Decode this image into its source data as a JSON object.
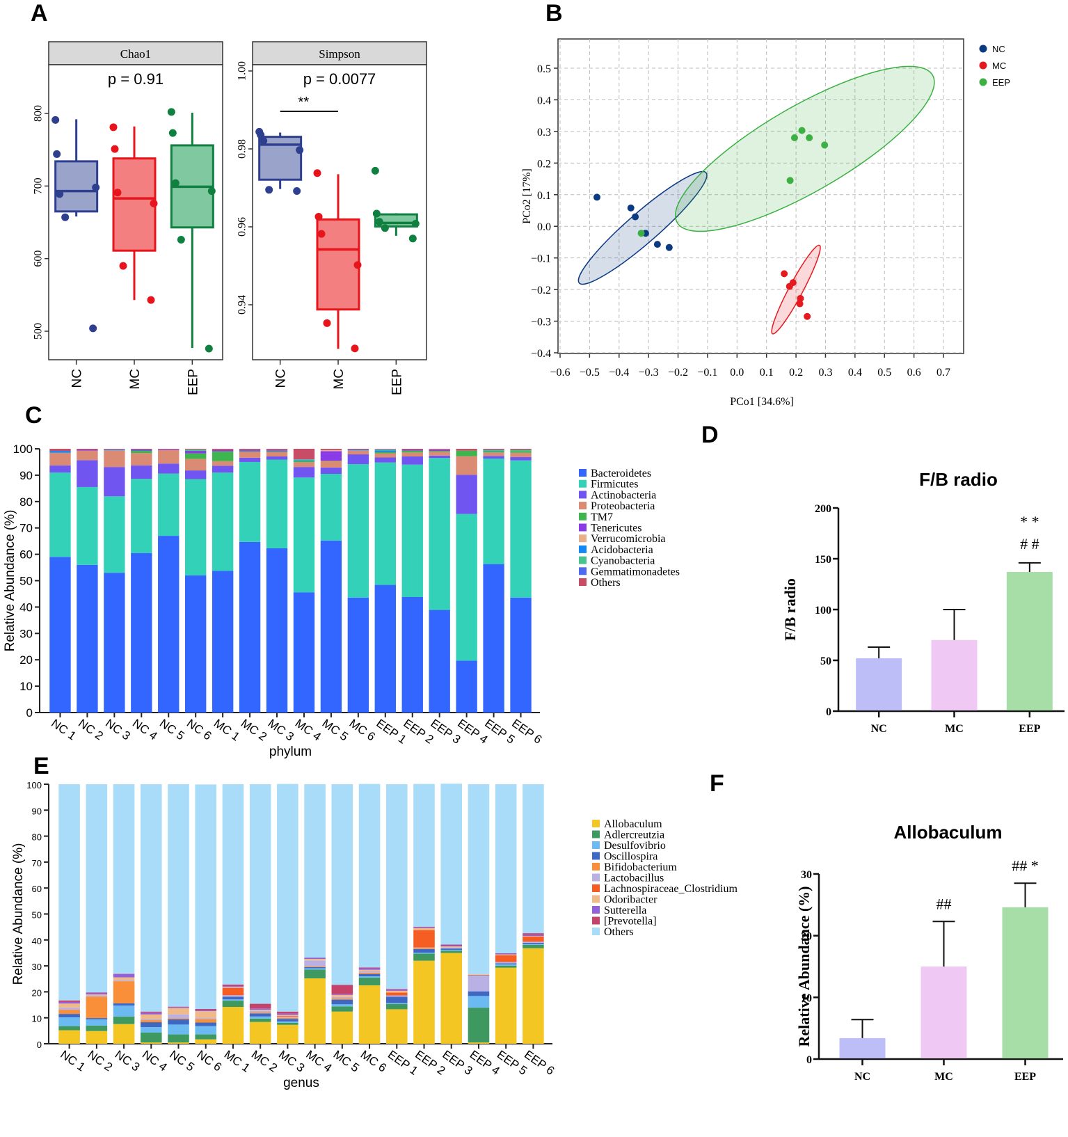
{
  "panel_labels": {
    "A": "A",
    "B": "B",
    "C": "C",
    "D": "D",
    "E": "E",
    "F": "F"
  },
  "groups": [
    "NC",
    "MC",
    "EEP"
  ],
  "group_colors": {
    "box": {
      "NC": "#2e3f8f",
      "MC": "#e8141b",
      "EEP": "#0f8040"
    },
    "box_fill": {
      "NC": "#9aa3c9",
      "MC": "#f47f80",
      "EEP": "#80c8a0"
    },
    "pcoa": {
      "NC": "#0b3a82",
      "MC": "#e51a1f",
      "EEP": "#3cb043"
    },
    "bar": {
      "NC": "#bdbdf8",
      "MC": "#efc9f4",
      "EEP": "#a7dea8"
    }
  },
  "chart_data": [
    {
      "id": "A-chao1",
      "type": "box",
      "title": "Chao1",
      "annotation": "p = 0.91",
      "categories": [
        "NC",
        "MC",
        "EEP"
      ],
      "ylim": [
        465,
        880
      ],
      "yticks": [
        500,
        600,
        700,
        800
      ],
      "boxes": [
        {
          "group": "NC",
          "q1": 665,
          "median": 693,
          "q3": 734,
          "whisker_low": 658,
          "whisker_high": 792,
          "points": [
            791,
            744,
            689,
            698,
            657,
            504
          ]
        },
        {
          "group": "MC",
          "q1": 611,
          "median": 683,
          "q3": 738,
          "whisker_low": 543,
          "whisker_high": 782,
          "points": [
            781,
            751,
            691,
            676,
            590,
            543
          ]
        },
        {
          "group": "EEP",
          "q1": 643,
          "median": 699,
          "q3": 756,
          "whisker_low": 477,
          "whisker_high": 801,
          "points": [
            802,
            773,
            704,
            693,
            626,
            476
          ]
        }
      ]
    },
    {
      "id": "A-simpson",
      "type": "box",
      "title": "Simpson",
      "annotation": "p = 0.0077",
      "significance": {
        "label": "**",
        "from": "NC",
        "to": "MC"
      },
      "categories": [
        "NC",
        "MC",
        "EEP"
      ],
      "ylim": [
        0.926,
        1.0015
      ],
      "yticks": [
        0.94,
        0.96,
        0.98,
        1.0
      ],
      "ytick_labels": [
        "0.94",
        "0.96",
        "0.98",
        "1.00"
      ],
      "boxes": [
        {
          "group": "NC",
          "q1": 0.9721,
          "median": 0.9811,
          "q3": 0.9831,
          "whisker_low": 0.9697,
          "whisker_high": 0.9842,
          "points": [
            0.9844,
            0.9836,
            0.9821,
            0.9797,
            0.9695,
            0.9692
          ]
        },
        {
          "group": "MC",
          "q1": 0.9388,
          "median": 0.9542,
          "q3": 0.9619,
          "whisker_low": 0.9287,
          "whisker_high": 0.9735,
          "points": [
            0.9738,
            0.9626,
            0.9582,
            0.9502,
            0.9353,
            0.9288
          ]
        },
        {
          "group": "EEP",
          "q1": 0.9601,
          "median": 0.961,
          "q3": 0.9632,
          "whisker_low": 0.9577,
          "whisker_high": 0.9635,
          "points": [
            0.9744,
            0.9634,
            0.9613,
            0.9608,
            0.9597,
            0.957
          ]
        }
      ]
    },
    {
      "id": "B-pcoa",
      "type": "scatter",
      "xlabel": "PCo1 [34.6%]",
      "ylabel": "PCo2 [17%]",
      "xlim": [
        -0.62,
        0.72
      ],
      "ylim": [
        -0.42,
        0.57
      ],
      "xticks": [
        -0.6,
        -0.5,
        -0.4,
        -0.3,
        -0.2,
        -0.1,
        0.0,
        0.1,
        0.2,
        0.3,
        0.4,
        0.5,
        0.6,
        0.7
      ],
      "yticks": [
        -0.4,
        -0.3,
        -0.2,
        -0.1,
        0.0,
        0.1,
        0.2,
        0.3,
        0.4,
        0.5
      ],
      "grid": true,
      "legend_position": "top-right",
      "series": [
        {
          "name": "NC",
          "points": [
            [
              -0.475,
              0.092
            ],
            [
              -0.36,
              0.058
            ],
            [
              -0.345,
              0.03
            ],
            [
              -0.31,
              -0.022
            ],
            [
              -0.27,
              -0.057
            ],
            [
              -0.23,
              -0.067
            ]
          ],
          "ellipse": {
            "cx": -0.32,
            "cy": -0.005,
            "rx": 0.285,
            "ry": 0.048,
            "angle_deg": -41
          }
        },
        {
          "name": "MC",
          "points": [
            [
              0.16,
              -0.15
            ],
            [
              0.178,
              -0.19
            ],
            [
              0.19,
              -0.178
            ],
            [
              0.215,
              -0.228
            ],
            [
              0.213,
              -0.245
            ],
            [
              0.238,
              -0.285
            ]
          ],
          "ellipse": {
            "cx": 0.2,
            "cy": -0.2,
            "rx": 0.17,
            "ry": 0.022,
            "angle_deg": -62
          }
        },
        {
          "name": "EEP",
          "points": [
            [
              0.22,
              0.303
            ],
            [
              0.195,
              0.28
            ],
            [
              0.245,
              0.28
            ],
            [
              0.297,
              0.257
            ],
            [
              0.18,
              0.145
            ],
            [
              -0.325,
              -0.022
            ]
          ],
          "ellipse": {
            "cx": 0.23,
            "cy": 0.245,
            "rx": 0.5,
            "ry": 0.135,
            "angle_deg": -30
          }
        }
      ]
    },
    {
      "id": "C-phylum",
      "type": "bar",
      "stacked": true,
      "xlabel": "phylum",
      "ylabel": "Relative Abundance (%)",
      "ylim": [
        0,
        100
      ],
      "yticks": [
        0,
        10,
        20,
        30,
        40,
        50,
        60,
        70,
        80,
        90,
        100
      ],
      "categories": [
        "NC 1",
        "NC 2",
        "NC 3",
        "NC 4",
        "NC 5",
        "NC 6",
        "MC 1",
        "MC 2",
        "MC 3",
        "MC 4",
        "MC 5",
        "MC 6",
        "EEP 1",
        "EEP 2",
        "EEP 3",
        "EEP 4",
        "EEP 5",
        "EEP 6"
      ],
      "series": [
        {
          "name": "Bacteroidetes",
          "color": "#3366ff",
          "values": [
            59,
            56,
            53,
            60.5,
            67,
            52,
            53.7,
            64.7,
            62.3,
            45.6,
            65.2,
            43.6,
            48.4,
            43.8,
            38.9,
            19.7,
            56.3,
            43.6
          ]
        },
        {
          "name": "Firmicutes",
          "color": "#33d1b8",
          "values": [
            32,
            29.5,
            29,
            28.1,
            23.6,
            36.5,
            37.3,
            30.3,
            33.6,
            43.5,
            25.3,
            50.6,
            46.4,
            50.2,
            57.6,
            55.6,
            40.0,
            52.0
          ]
        },
        {
          "name": "Actinobacteria",
          "color": "#7055f0",
          "values": [
            2.7,
            10.2,
            11.1,
            5.1,
            3.8,
            3.3,
            2.6,
            1.6,
            1.2,
            4.0,
            2.4,
            3.7,
            1.9,
            3.1,
            0.9,
            14.8,
            1.0,
            1.3
          ]
        },
        {
          "name": "Proteobacteria",
          "color": "#db8a73",
          "values": [
            4.8,
            3.6,
            6.4,
            4.7,
            5.2,
            4.4,
            1.7,
            2.2,
            1.6,
            1.8,
            2.5,
            1.5,
            1.6,
            1.5,
            1.5,
            7.1,
            1.3,
            1.6
          ]
        },
        {
          "name": "TM7",
          "color": "#3fb550",
          "values": [
            0,
            0,
            0,
            0.8,
            0,
            2.1,
            3.7,
            0.2,
            0.3,
            0.5,
            0.1,
            0,
            0.5,
            0.7,
            0.3,
            2.1,
            0.5,
            0.6
          ]
        },
        {
          "name": "Tenericutes",
          "color": "#8a3ae6",
          "values": [
            0,
            0.3,
            0,
            0,
            0.3,
            0.9,
            0.5,
            0.2,
            0.3,
            0,
            3.6,
            0,
            0,
            0.3,
            0.4,
            0,
            0,
            0
          ]
        },
        {
          "name": "Verrucomicrobia",
          "color": "#e6b08a",
          "values": [
            0,
            0,
            0,
            0,
            0,
            0,
            0,
            0,
            0,
            0,
            0.4,
            0,
            0,
            0,
            0.1,
            0,
            0,
            0
          ]
        },
        {
          "name": "Acidobacteria",
          "color": "#1487f5",
          "values": [
            0.7,
            0,
            0.3,
            0,
            0,
            0,
            0,
            0,
            0,
            0.3,
            0,
            0.3,
            0.6,
            0,
            0,
            0,
            0.2,
            0
          ]
        },
        {
          "name": "Cyanobacteria",
          "color": "#49c48e",
          "values": [
            0,
            0,
            0,
            0,
            0,
            0.5,
            0,
            0,
            0,
            0.3,
            0,
            0,
            0.3,
            0,
            0,
            0,
            0.3,
            0.5
          ]
        },
        {
          "name": "Gemmatimonadetes",
          "color": "#4f6af0",
          "values": [
            0,
            0,
            0,
            0.4,
            0,
            0,
            0,
            0.3,
            0.2,
            0,
            0,
            0,
            0.1,
            0,
            0,
            0,
            0,
            0
          ]
        },
        {
          "name": "Others",
          "color": "#c94c66",
          "values": [
            0.8,
            0.4,
            0.2,
            0.4,
            0.1,
            0.3,
            0.5,
            0.5,
            0.5,
            4.0,
            0.5,
            0.3,
            0.2,
            0.4,
            0.3,
            0.7,
            0.4,
            0.4
          ]
        }
      ]
    },
    {
      "id": "D-fb-ratio",
      "type": "bar",
      "title": "F/B radio",
      "ylabel": "F/B radio",
      "categories": [
        "NC",
        "MC",
        "EEP"
      ],
      "values": [
        52,
        70,
        137
      ],
      "error_upper": [
        63,
        100,
        146
      ],
      "ylim": [
        0,
        200
      ],
      "yticks": [
        0,
        50,
        100,
        150,
        200
      ],
      "annotations": [
        {
          "category": "EEP",
          "lines": [
            "* *",
            "# #"
          ]
        }
      ]
    },
    {
      "id": "E-genus",
      "type": "bar",
      "stacked": true,
      "xlabel": "genus",
      "ylabel": "Relative Abundance (%)",
      "ylim": [
        0,
        100
      ],
      "yticks": [
        0,
        10,
        20,
        30,
        40,
        50,
        60,
        70,
        80,
        90,
        100
      ],
      "categories": [
        "NC 1",
        "NC 2",
        "NC 3",
        "NC 4",
        "NC 5",
        "NC 6",
        "MC 1",
        "MC 2",
        "MC 3",
        "MC 4",
        "MC 5",
        "MC 6",
        "EEP 1",
        "EEP 2",
        "EEP 3",
        "EEP 4",
        "EEP 5",
        "EEP 6"
      ],
      "series": [
        {
          "name": "Allobaculum",
          "color": "#f3c623",
          "values": [
            5.2,
            4.9,
            7.6,
            0.5,
            0.5,
            1.7,
            14.2,
            8.4,
            7.3,
            25.2,
            12.4,
            22.5,
            13.3,
            32.0,
            35.0,
            0.5,
            29.3,
            36.8
          ]
        },
        {
          "name": "Adlercreutzia",
          "color": "#3d9960",
          "values": [
            1.6,
            2.1,
            2.9,
            3.8,
            3.1,
            1.9,
            2.4,
            1.3,
            0.8,
            3.4,
            2.0,
            3.0,
            2.0,
            2.7,
            0.8,
            13.4,
            0.8,
            1.3
          ]
        },
        {
          "name": "Desulfovibrio",
          "color": "#6cbaf2",
          "values": [
            3.4,
            2.4,
            4.2,
            2.1,
            3.8,
            3.2,
            0.5,
            0.8,
            0.5,
            0.5,
            0.8,
            0.5,
            0.4,
            0.4,
            0.4,
            4.5,
            0.5,
            0.3
          ]
        },
        {
          "name": "Oscillospira",
          "color": "#3f68c4",
          "values": [
            1.3,
            0.5,
            0.9,
            1.9,
            2.0,
            1.4,
            1.0,
            1.2,
            1.0,
            0.4,
            1.8,
            0.9,
            2.4,
            1.4,
            0.5,
            1.8,
            0.4,
            0.5
          ]
        },
        {
          "name": "Bifidobacterium",
          "color": "#f98f38",
          "values": [
            1.6,
            8.2,
            8.5,
            0.8,
            0.4,
            1.3,
            0,
            0.4,
            0.4,
            0.3,
            0.5,
            0.5,
            0,
            0.4,
            0,
            0,
            0,
            0
          ]
        },
        {
          "name": "Lactobacillus",
          "color": "#b9b1e4",
          "values": [
            0.8,
            0.4,
            0.4,
            0.4,
            1.5,
            0.4,
            0.6,
            0.6,
            0.4,
            2.3,
            0.5,
            0.5,
            0.5,
            0.2,
            0.4,
            6.1,
            0.5,
            0.4
          ]
        },
        {
          "name": "Lachnospiraceae_Clostridium",
          "color": "#f65d22",
          "values": [
            0,
            0,
            0,
            0,
            0,
            0,
            2.8,
            0,
            0.3,
            0,
            0,
            0,
            1.1,
            6.7,
            0,
            0.3,
            2.6,
            2.0
          ]
        },
        {
          "name": "Odoribacter",
          "color": "#efb98a",
          "values": [
            1.6,
            0.5,
            1.1,
            1.8,
            2.5,
            2.7,
            0.3,
            0.4,
            0.4,
            0.6,
            0.8,
            0.6,
            0.7,
            0.8,
            0.4,
            0,
            0.3,
            0.2
          ]
        },
        {
          "name": "Sutterella",
          "color": "#9260d8",
          "values": [
            0.6,
            0.6,
            1.3,
            0.7,
            0.3,
            0.4,
            0.4,
            0.5,
            0.5,
            0.5,
            0.3,
            0.6,
            0.4,
            0.3,
            0.3,
            0,
            0.3,
            0.5
          ]
        },
        {
          "name": "[Prevotella]",
          "color": "#c5426a",
          "values": [
            0.6,
            0.2,
            0.1,
            0.4,
            0.2,
            0.4,
            0.6,
            1.8,
            0.8,
            0,
            3.6,
            0.3,
            0.3,
            0.2,
            0.4,
            0,
            0.2,
            0.6
          ]
        },
        {
          "name": "Others",
          "color": "#a9dcf8",
          "values": [
            83.3,
            80.2,
            73.0,
            87.6,
            85.7,
            86.5,
            77.2,
            84.6,
            87.7,
            66.8,
            77.3,
            70.7,
            78.9,
            55.0,
            62.0,
            73.4,
            65.1,
            57.4
          ]
        }
      ]
    },
    {
      "id": "F-allobaculum",
      "type": "bar",
      "title": "Allobaculum",
      "ylabel": "Relative Abundance (%)",
      "categories": [
        "NC",
        "MC",
        "EEP"
      ],
      "values": [
        3.4,
        15.0,
        24.6
      ],
      "error_upper": [
        6.4,
        22.3,
        28.5
      ],
      "ylim": [
        0,
        30
      ],
      "yticks": [
        0,
        10,
        20,
        30
      ],
      "annotations": [
        {
          "category": "MC",
          "lines": [
            "##"
          ]
        },
        {
          "category": "EEP",
          "lines": [
            "## *"
          ]
        }
      ]
    }
  ]
}
